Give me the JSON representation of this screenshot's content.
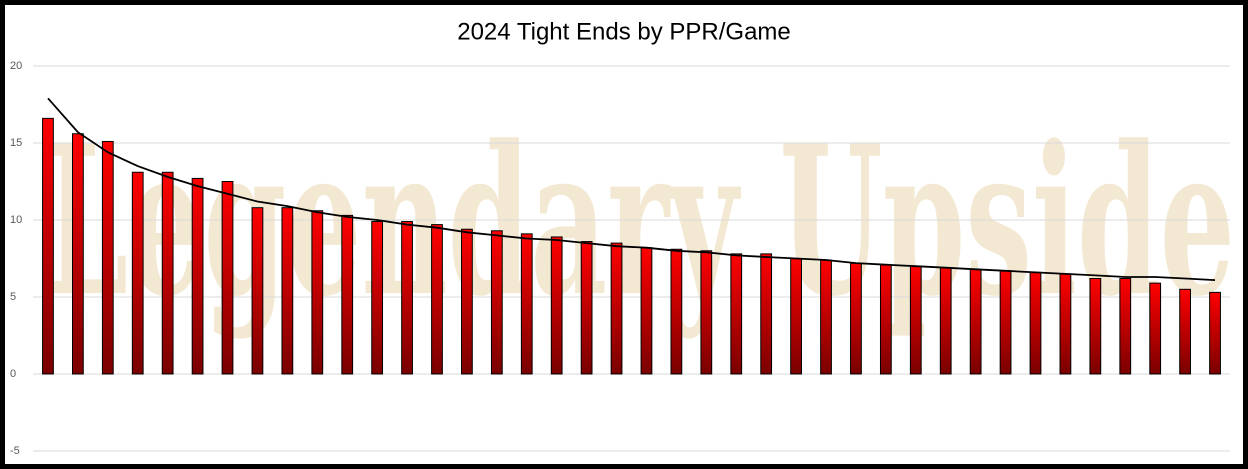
{
  "chart_data": {
    "type": "bar",
    "title": "2024 Tight Ends by PPR/Game",
    "watermark": "Legendary Upside",
    "categories": [
      null,
      null,
      null,
      null,
      null,
      null,
      null,
      null,
      null,
      null,
      null,
      null,
      null,
      null,
      null,
      null,
      null,
      null,
      null,
      null,
      null,
      null,
      null,
      null,
      null,
      null,
      null,
      null,
      null,
      null,
      null,
      null,
      null,
      null,
      null,
      null,
      null,
      null,
      null,
      null
    ],
    "values": [
      16.6,
      15.6,
      15.1,
      13.1,
      13.1,
      12.7,
      12.5,
      10.8,
      10.8,
      10.6,
      10.3,
      9.9,
      9.9,
      9.7,
      9.4,
      9.3,
      9.1,
      8.9,
      8.6,
      8.5,
      8.2,
      8.1,
      8.0,
      7.8,
      7.8,
      7.5,
      7.4,
      7.2,
      7.1,
      7.0,
      6.9,
      6.8,
      6.7,
      6.6,
      6.5,
      6.2,
      6.2,
      5.9,
      5.5,
      5.3
    ],
    "color": "#ff0000",
    "gradient_end": "#7a0000",
    "trendline": {
      "type": "logarithmic",
      "color": "#000000",
      "values": [
        17.9,
        15.7,
        14.4,
        13.5,
        12.8,
        12.2,
        11.7,
        11.2,
        10.9,
        10.5,
        10.2,
        10.0,
        9.7,
        9.5,
        9.2,
        9.0,
        8.8,
        8.7,
        8.5,
        8.3,
        8.2,
        8.0,
        7.9,
        7.7,
        7.6,
        7.5,
        7.4,
        7.2,
        7.1,
        7.0,
        6.9,
        6.8,
        6.7,
        6.6,
        6.5,
        6.4,
        6.3,
        6.3,
        6.2,
        6.1
      ]
    },
    "ylim": [
      -5,
      20
    ],
    "yticks": [
      -5,
      0,
      5,
      10,
      15,
      20
    ],
    "grid": true
  }
}
